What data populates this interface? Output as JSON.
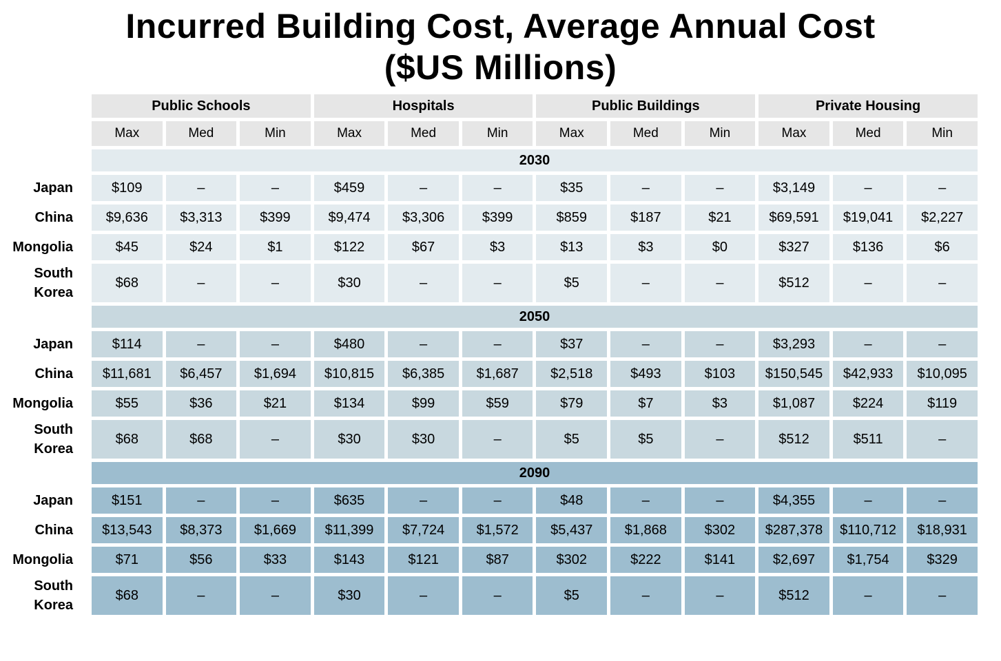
{
  "title": {
    "line1": "Incurred Building Cost, Average Annual Cost",
    "line2": "($US Millions)"
  },
  "colors": {
    "background": "#ffffff",
    "text": "#000000",
    "header_bg": "#e6e6e6",
    "section_2030": "#e3ebef",
    "section_2050": "#c8d8df",
    "section_2090": "#9dbdcf"
  },
  "table": {
    "column_groups": [
      {
        "label": "Public Schools"
      },
      {
        "label": "Hospitals"
      },
      {
        "label": "Public Buildings"
      },
      {
        "label": "Private Housing"
      }
    ],
    "sub_columns": [
      "Max",
      "Med",
      "Min"
    ],
    "missing_marker": "–",
    "sections": [
      {
        "year": "2030",
        "color_key": "section_2030",
        "rows": [
          {
            "label": "Japan",
            "values": [
              "$109",
              "–",
              "–",
              "$459",
              "–",
              "–",
              "$35",
              "–",
              "–",
              "$3,149",
              "–",
              "–"
            ]
          },
          {
            "label": "China",
            "values": [
              "$9,636",
              "$3,313",
              "$399",
              "$9,474",
              "$3,306",
              "$399",
              "$859",
              "$187",
              "$21",
              "$69,591",
              "$19,041",
              "$2,227"
            ]
          },
          {
            "label": "Mongolia",
            "values": [
              "$45",
              "$24",
              "$1",
              "$122",
              "$67",
              "$3",
              "$13",
              "$3",
              "$0",
              "$327",
              "$136",
              "$6"
            ]
          },
          {
            "label": "South Korea",
            "values": [
              "$68",
              "–",
              "–",
              "$30",
              "–",
              "–",
              "$5",
              "–",
              "–",
              "$512",
              "–",
              "–"
            ]
          }
        ]
      },
      {
        "year": "2050",
        "color_key": "section_2050",
        "rows": [
          {
            "label": "Japan",
            "values": [
              "$114",
              "–",
              "–",
              "$480",
              "–",
              "–",
              "$37",
              "–",
              "–",
              "$3,293",
              "–",
              "–"
            ]
          },
          {
            "label": "China",
            "values": [
              "$11,681",
              "$6,457",
              "$1,694",
              "$10,815",
              "$6,385",
              "$1,687",
              "$2,518",
              "$493",
              "$103",
              "$150,545",
              "$42,933",
              "$10,095"
            ]
          },
          {
            "label": "Mongolia",
            "values": [
              "$55",
              "$36",
              "$21",
              "$134",
              "$99",
              "$59",
              "$79",
              "$7",
              "$3",
              "$1,087",
              "$224",
              "$119"
            ]
          },
          {
            "label": "South Korea",
            "values": [
              "$68",
              "$68",
              "–",
              "$30",
              "$30",
              "–",
              "$5",
              "$5",
              "–",
              "$512",
              "$511",
              "–"
            ]
          }
        ]
      },
      {
        "year": "2090",
        "color_key": "section_2090",
        "rows": [
          {
            "label": "Japan",
            "values": [
              "$151",
              "–",
              "–",
              "$635",
              "–",
              "–",
              "$48",
              "–",
              "–",
              "$4,355",
              "–",
              "–"
            ]
          },
          {
            "label": "China",
            "values": [
              "$13,543",
              "$8,373",
              "$1,669",
              "$11,399",
              "$7,724",
              "$1,572",
              "$5,437",
              "$1,868",
              "$302",
              "$287,378",
              "$110,712",
              "$18,931"
            ]
          },
          {
            "label": "Mongolia",
            "values": [
              "$71",
              "$56",
              "$33",
              "$143",
              "$121",
              "$87",
              "$302",
              "$222",
              "$141",
              "$2,697",
              "$1,754",
              "$329"
            ]
          },
          {
            "label": "South Korea",
            "values": [
              "$68",
              "–",
              "–",
              "$30",
              "–",
              "–",
              "$5",
              "–",
              "–",
              "$512",
              "–",
              "–"
            ]
          }
        ]
      }
    ]
  },
  "chart_data": {
    "type": "table",
    "title": "Incurred Building Cost, Average Annual Cost ($US Millions)",
    "units": "$US Millions",
    "column_groups": [
      "Public Schools",
      "Hospitals",
      "Public Buildings",
      "Private Housing"
    ],
    "sub_columns": [
      "Max",
      "Med",
      "Min"
    ],
    "row_groups": [
      "2030",
      "2050",
      "2090"
    ],
    "row_labels": [
      "Japan",
      "China",
      "Mongolia",
      "South Korea"
    ],
    "missing_marker": "–",
    "values": {
      "2030": {
        "Japan": [
          109,
          null,
          null,
          459,
          null,
          null,
          35,
          null,
          null,
          3149,
          null,
          null
        ],
        "China": [
          9636,
          3313,
          399,
          9474,
          3306,
          399,
          859,
          187,
          21,
          69591,
          19041,
          2227
        ],
        "Mongolia": [
          45,
          24,
          1,
          122,
          67,
          3,
          13,
          3,
          0,
          327,
          136,
          6
        ],
        "South Korea": [
          68,
          null,
          null,
          30,
          null,
          null,
          5,
          null,
          null,
          512,
          null,
          null
        ]
      },
      "2050": {
        "Japan": [
          114,
          null,
          null,
          480,
          null,
          null,
          37,
          null,
          null,
          3293,
          null,
          null
        ],
        "China": [
          11681,
          6457,
          1694,
          10815,
          6385,
          1687,
          2518,
          493,
          103,
          150545,
          42933,
          10095
        ],
        "Mongolia": [
          55,
          36,
          21,
          134,
          99,
          59,
          79,
          7,
          3,
          1087,
          224,
          119
        ],
        "South Korea": [
          68,
          68,
          null,
          30,
          30,
          null,
          5,
          5,
          null,
          512,
          511,
          null
        ]
      },
      "2090": {
        "Japan": [
          151,
          null,
          null,
          635,
          null,
          null,
          48,
          null,
          null,
          4355,
          null,
          null
        ],
        "China": [
          13543,
          8373,
          1669,
          11399,
          7724,
          1572,
          5437,
          1868,
          302,
          287378,
          110712,
          18931
        ],
        "Mongolia": [
          71,
          56,
          33,
          143,
          121,
          87,
          302,
          222,
          141,
          2697,
          1754,
          329
        ],
        "South Korea": [
          68,
          null,
          null,
          30,
          null,
          null,
          5,
          null,
          null,
          512,
          null,
          null
        ]
      }
    }
  }
}
